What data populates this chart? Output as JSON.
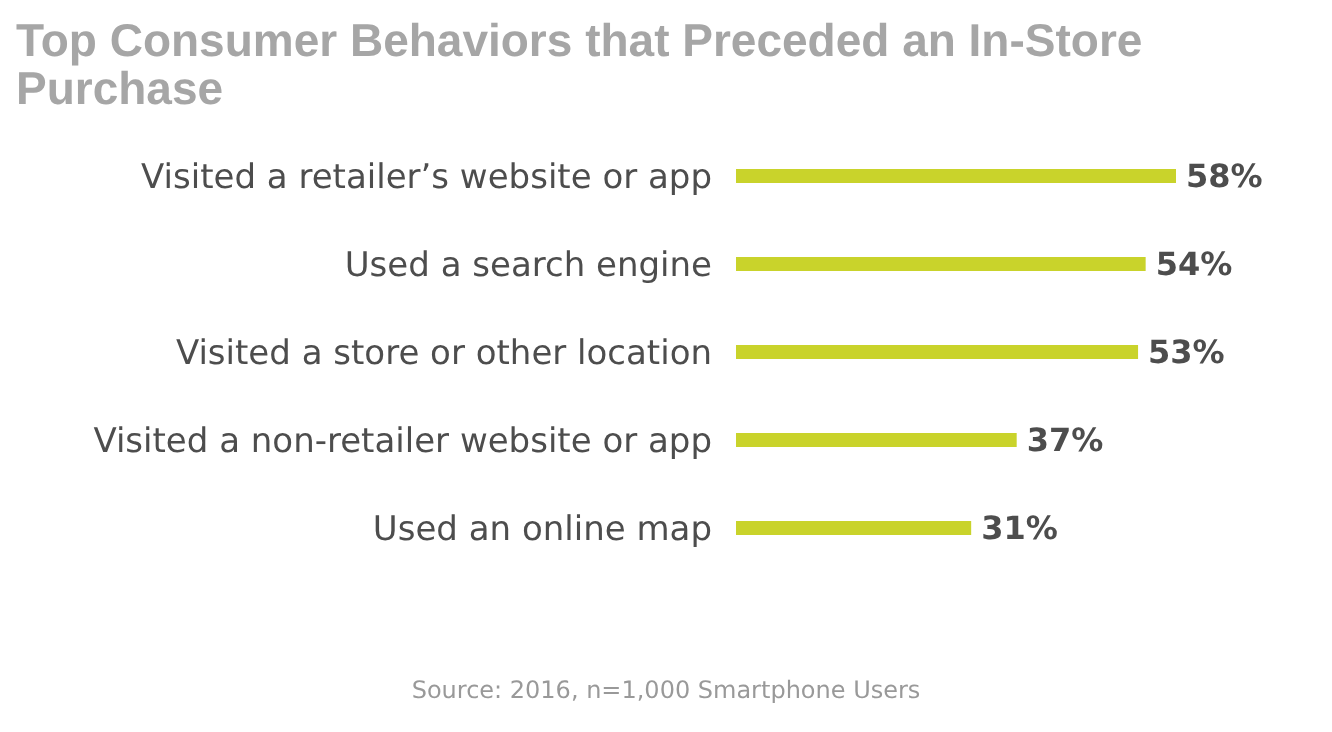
{
  "chart_data": {
    "type": "bar",
    "orientation": "horizontal",
    "title": "Top Consumer Behaviors that Preceded an In-Store Purchase",
    "categories": [
      "Visited a retailer’s website or app",
      "Used a search engine",
      "Visited a store or other location",
      "Visited a non-retailer website or app",
      "Used an online map"
    ],
    "values": [
      58,
      54,
      53,
      37,
      31
    ],
    "color": "#c9d32b",
    "data_labels": true,
    "value_labels": [
      "58%",
      "54%",
      "53%",
      "37%",
      "31%"
    ],
    "annotations": [
      "Source: 2016, n=1,000 Smartphone Users"
    ]
  }
}
